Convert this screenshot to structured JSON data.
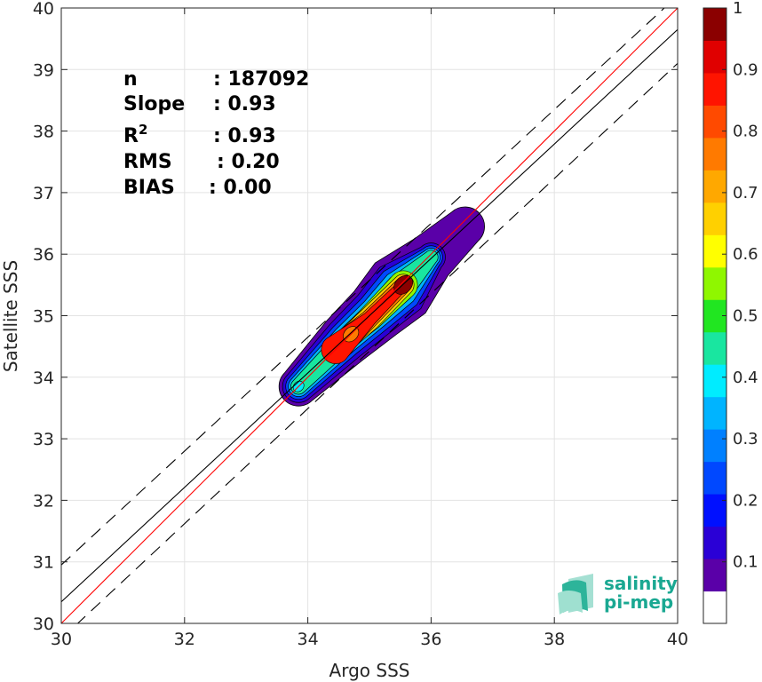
{
  "chart_data": {
    "type": "heatmap",
    "subtype": "density-contour-scatter",
    "xlabel": "Argo SSS",
    "ylabel": "Satellite SSS",
    "xlim": [
      30,
      40
    ],
    "ylim": [
      30,
      40
    ],
    "x_ticks": [
      30,
      32,
      34,
      36,
      38,
      40
    ],
    "y_ticks": [
      30,
      31,
      32,
      33,
      34,
      35,
      36,
      37,
      38,
      39,
      40
    ],
    "grid": true,
    "stats": [
      {
        "label": "n",
        "value": ": 187092"
      },
      {
        "label": "Slope",
        "value": ": 0.93"
      },
      {
        "label": "R",
        "sup": "2",
        "value": ": 0.93"
      },
      {
        "label": "RMS",
        "value": ": 0.20"
      },
      {
        "label": "BIAS",
        "value": ": 0.00"
      }
    ],
    "reference_lines": [
      {
        "kind": "identity",
        "x": [
          30,
          40
        ],
        "y": [
          30,
          40
        ],
        "color": "#ff0000",
        "style": "solid"
      },
      {
        "kind": "regression",
        "x": [
          30,
          40
        ],
        "y": [
          30.35,
          39.65
        ],
        "color": "#000000",
        "style": "solid"
      },
      {
        "kind": "upper-bound",
        "x": [
          30,
          40
        ],
        "y": [
          30.95,
          40.2
        ],
        "color": "#000000",
        "style": "dashed"
      },
      {
        "kind": "lower-bound",
        "x": [
          30,
          40
        ],
        "y": [
          29.75,
          39.1
        ],
        "color": "#000000",
        "style": "dashed"
      }
    ],
    "density_ridge": {
      "x": [
        33.85,
        34.6,
        35.1,
        35.5,
        36.0,
        36.55
      ],
      "y": [
        33.85,
        34.6,
        35.05,
        35.45,
        35.95,
        36.45
      ]
    },
    "density_peaks": [
      {
        "x": 35.55,
        "y": 35.5,
        "level": 1.0
      },
      {
        "x": 34.7,
        "y": 34.7,
        "level": 0.75
      },
      {
        "x": 33.85,
        "y": 33.85,
        "level": 0.4
      }
    ],
    "colorbar": {
      "ticks": [
        "0.1",
        "0.2",
        "0.3",
        "0.4",
        "0.5",
        "0.6",
        "0.7",
        "0.8",
        "0.9",
        "1"
      ],
      "tick_values": [
        0.1,
        0.2,
        0.3,
        0.4,
        0.5,
        0.6,
        0.7,
        0.8,
        0.9,
        1.0
      ],
      "range": [
        0,
        1
      ],
      "colors": [
        "#ffffff",
        "#5a00a8",
        "#2a00d6",
        "#0010ff",
        "#0048ff",
        "#0080ff",
        "#00b4ff",
        "#00ecff",
        "#19e6a0",
        "#21e621",
        "#8ff700",
        "#ffff00",
        "#ffd000",
        "#ffa800",
        "#ff7a00",
        "#ff4a00",
        "#ff1400",
        "#e00000",
        "#8b0000"
      ]
    }
  },
  "logo": {
    "line1": "salinity",
    "line2": "pi-mep"
  }
}
